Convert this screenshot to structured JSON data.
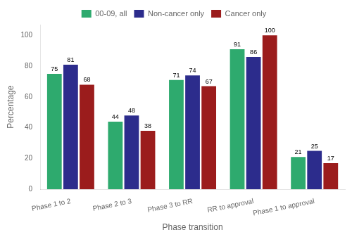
{
  "chart_data": {
    "type": "bar",
    "categories": [
      "Phase 1 to 2",
      "Phase 2 to 3",
      "Phase 3 to RR",
      "RR to approval",
      "Phase 1 to approval"
    ],
    "series": [
      {
        "name": "00-09, all",
        "color": "#2EAA6E",
        "values": [
          75,
          44,
          71,
          91,
          21
        ]
      },
      {
        "name": "Non-cancer only",
        "color": "#2C2C8C",
        "values": [
          81,
          48,
          74,
          86,
          25
        ]
      },
      {
        "name": "Cancer only",
        "color": "#9B1C1C",
        "values": [
          68,
          38,
          67,
          100,
          17
        ]
      }
    ],
    "xlabel": "Phase transition",
    "ylabel": "Percentage",
    "ylim": [
      0,
      107
    ],
    "yticks": [
      0,
      20,
      40,
      60,
      80,
      100
    ],
    "grid": false,
    "legend": "top",
    "data_labels": true
  }
}
